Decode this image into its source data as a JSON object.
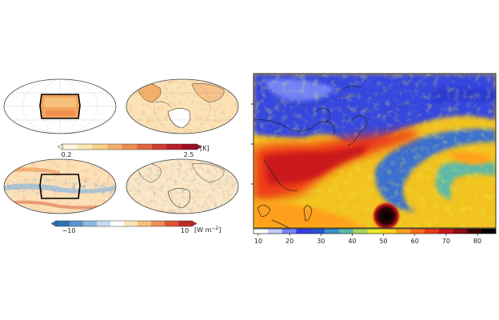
{
  "left_panel": {
    "colorbar_temp": {
      "min_label": "0.2",
      "max_label": "2.5",
      "unit": "[K]",
      "colors": [
        "#fdf6dc",
        "#fbe7b0",
        "#f8d08a",
        "#f3b06a",
        "#ec8c52",
        "#e1663f",
        "#cf3e33",
        "#b8202c",
        "#9e0f25"
      ]
    },
    "colorbar_flux": {
      "min_label": "−10",
      "max_label": "10",
      "unit": "[W m",
      "unit_sup": "−2",
      "unit_close": "]",
      "colors": [
        "#2e74b5",
        "#5a95c9",
        "#8fb7dc",
        "#c5daee",
        "#ffffff",
        "#fbe3b5",
        "#f5bf7c",
        "#ec8f52",
        "#d95536",
        "#c02a24"
      ]
    }
  },
  "right_panel": {
    "colorbar": {
      "ticks": [
        "10",
        "20",
        "30",
        "40",
        "50",
        "60",
        "70",
        "80"
      ],
      "colors": [
        "#ffffff",
        "#c6cbff",
        "#7a84f2",
        "#3340e6",
        "#2a55d8",
        "#3b90c8",
        "#5cb8a8",
        "#a8d65a",
        "#e8ec2a",
        "#ffd21a",
        "#ffa01e",
        "#ff6d1c",
        "#ee3a18",
        "#c8161a",
        "#8c0c12",
        "#3a0608",
        "#000000"
      ]
    }
  }
}
